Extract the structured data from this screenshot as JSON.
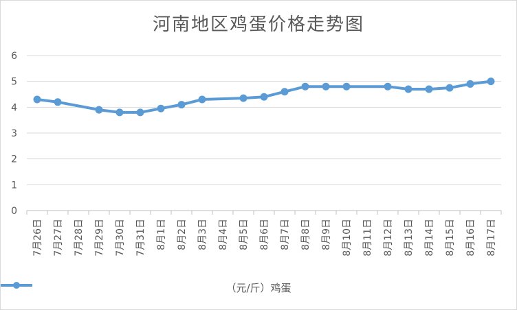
{
  "chart_data": {
    "type": "line",
    "title": "河南地区鸡蛋价格走势图",
    "categories": [
      "7月26日",
      "7月27日",
      "7月28日",
      "7月29日",
      "7月30日",
      "7月31日",
      "8月1日",
      "8月2日",
      "8月3日",
      "8月4日",
      "8月5日",
      "8月6日",
      "8月7日",
      "8月8日",
      "8月9日",
      "8月10日",
      "8月11日",
      "8月12日",
      "8月13日",
      "8月14日",
      "8月15日",
      "8月16日",
      "8月17日"
    ],
    "series": [
      {
        "name": "（元/斤）鸡蛋",
        "color": "#5b9bd5",
        "values": [
          4.3,
          4.2,
          null,
          3.9,
          3.8,
          3.8,
          3.95,
          4.1,
          4.3,
          null,
          4.35,
          4.4,
          4.6,
          4.8,
          4.8,
          4.8,
          null,
          4.8,
          4.7,
          4.7,
          4.75,
          4.9,
          5.0
        ]
      }
    ],
    "ylim": [
      0,
      6
    ],
    "yticks": [
      0,
      1,
      2,
      3,
      4,
      5,
      6
    ],
    "grid": true,
    "legend": "bottom"
  }
}
